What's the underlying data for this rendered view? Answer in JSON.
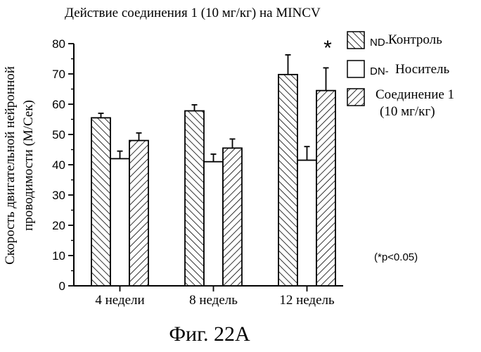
{
  "chart_data": {
    "type": "bar",
    "title": "Действие соединения 1 (10 мг/кг) на MINCV",
    "ylabel_line1": "Скорость двигательной нейронной",
    "ylabel_line2": "проводимости (М/Сек)",
    "ylim": [
      0,
      80
    ],
    "yticks": [
      "0",
      "10",
      "20",
      "30",
      "40",
      "50",
      "60",
      "70",
      "80"
    ],
    "categories": [
      "4 недели",
      "8 недель",
      "12 недель"
    ],
    "series": [
      {
        "name_prefix": "ND-",
        "name_main": "Контроль",
        "values": [
          55.5,
          57.8,
          69.8
        ],
        "errors": [
          1.5,
          2.0,
          6.5
        ],
        "pattern": "backslash"
      },
      {
        "name_prefix": "DN-",
        "name_main": "Носитель",
        "values": [
          42.0,
          41.0,
          41.5
        ],
        "errors": [
          2.5,
          2.5,
          4.5
        ],
        "pattern": "none"
      },
      {
        "name_prefix": "",
        "name_main": "Соединение 1",
        "name_line2": "(10 мг/кг)",
        "values": [
          48.0,
          45.5,
          64.5
        ],
        "errors": [
          2.5,
          3.0,
          7.5
        ],
        "pattern": "slash"
      }
    ],
    "significance_marker": "*",
    "significance_note": "(*p<0.05)",
    "legend_position": "top-right",
    "grid": false
  },
  "caption": "Фиг. 22А"
}
